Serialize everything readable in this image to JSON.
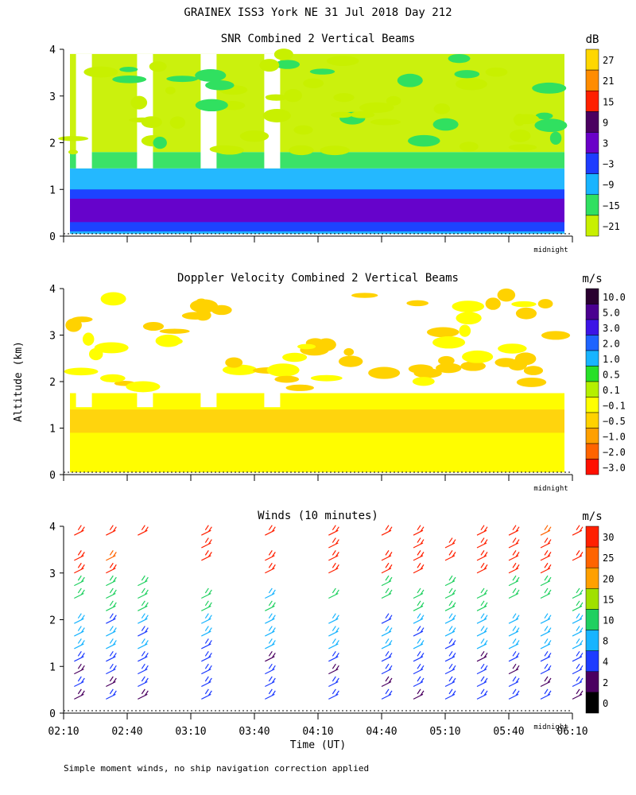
{
  "title": "GRAINEX ISS3 York NE  31 Jul 2018 Day 212",
  "y_axis_label": "Altitude (km)",
  "x_axis_label": "Time (UT)",
  "footnote": "Simple moment winds, no ship navigation correction applied",
  "midnight_label": "midnight",
  "chart_data": [
    {
      "type": "heatmap",
      "title": "SNR Combined 2 Vertical Beams",
      "ylabel": "Altitude (km)",
      "ylim": [
        0,
        4
      ],
      "yticks": [
        0,
        1,
        2,
        3,
        4
      ],
      "x_time_range": [
        "02:10",
        "06:10"
      ],
      "colorbar_unit": "dB",
      "colorbar_labels": [
        "27",
        "21",
        "15",
        "9",
        "3",
        "−3",
        "−9",
        "−15",
        "−21"
      ],
      "colorbar_colors": [
        "#ffd700",
        "#ff8c00",
        "#ff2000",
        "#4b0060",
        "#6a00c8",
        "#1e3cff",
        "#18b4ff",
        "#30e060",
        "#c8f000"
      ],
      "levels": [
        {
          "z_min_km": 0.05,
          "z_max_km": 1.45,
          "value_db": -12,
          "color_index": 6
        },
        {
          "z_min_km": 0.1,
          "z_max_km": 1.0,
          "value_db": -3,
          "color_index": 5
        },
        {
          "z_min_km": 0.3,
          "z_max_km": 0.8,
          "value_db": 3,
          "color_index": 4
        },
        {
          "z_min_km": 1.45,
          "z_max_km": 1.8,
          "value_db": -15,
          "color_index": 7
        },
        {
          "z_min_km": 1.8,
          "z_max_km": 3.9,
          "value_db": -21,
          "color_index": 8
        }
      ]
    },
    {
      "type": "heatmap",
      "title": "Doppler Velocity Combined 2 Vertical Beams",
      "ylabel": "Altitude (km)",
      "ylim": [
        0,
        4
      ],
      "yticks": [
        0,
        1,
        2,
        3,
        4
      ],
      "x_time_range": [
        "02:10",
        "06:10"
      ],
      "colorbar_unit": "m/s",
      "colorbar_labels": [
        "10.0",
        "5.0",
        "3.0",
        "2.0",
        "1.0",
        "0.5",
        "0.1",
        "−0.1",
        "−0.5",
        "−1.0",
        "−2.0",
        "−3.0"
      ],
      "colorbar_colors": [
        "#2a0030",
        "#4b0090",
        "#3c14e6",
        "#1e64ff",
        "#18b4ff",
        "#28e028",
        "#b4f000",
        "#ffff00",
        "#ffd200",
        "#ffa000",
        "#ff6400",
        "#ff1000"
      ],
      "levels": [
        {
          "z_min_km": 0.05,
          "z_max_km": 1.75,
          "value_ms": -0.3,
          "color_index": 8
        },
        {
          "z_min_km": 0.05,
          "z_max_km": 0.9,
          "value_ms": -0.1,
          "color_index": 7
        },
        {
          "z_min_km": 1.4,
          "z_max_km": 1.75,
          "value_ms": -0.05,
          "color_index": 7
        }
      ]
    },
    {
      "type": "scatter",
      "title": "Winds (10 minutes)",
      "ylabel": "Altitude (km)",
      "xlabel": "Time (UT)",
      "ylim": [
        0,
        4
      ],
      "yticks": [
        0,
        1,
        2,
        3,
        4
      ],
      "xticks": [
        "02:10",
        "02:40",
        "03:10",
        "03:40",
        "04:10",
        "04:40",
        "05:10",
        "05:40",
        "06:10"
      ],
      "colorbar_unit": "m/s",
      "colorbar_labels": [
        "30",
        "25",
        "20",
        "15",
        "10",
        "8",
        "4",
        "2",
        "0"
      ],
      "colorbar_colors": [
        "#ff2000",
        "#ff6400",
        "#ffa000",
        "#a0e000",
        "#20d060",
        "#18b4ff",
        "#1e3cff",
        "#4b0060",
        "#000000"
      ],
      "profiles_minutes_after_0210": [
        5,
        20,
        35,
        65,
        95,
        125,
        150,
        165,
        180,
        195,
        210,
        225,
        240
      ]
    }
  ]
}
